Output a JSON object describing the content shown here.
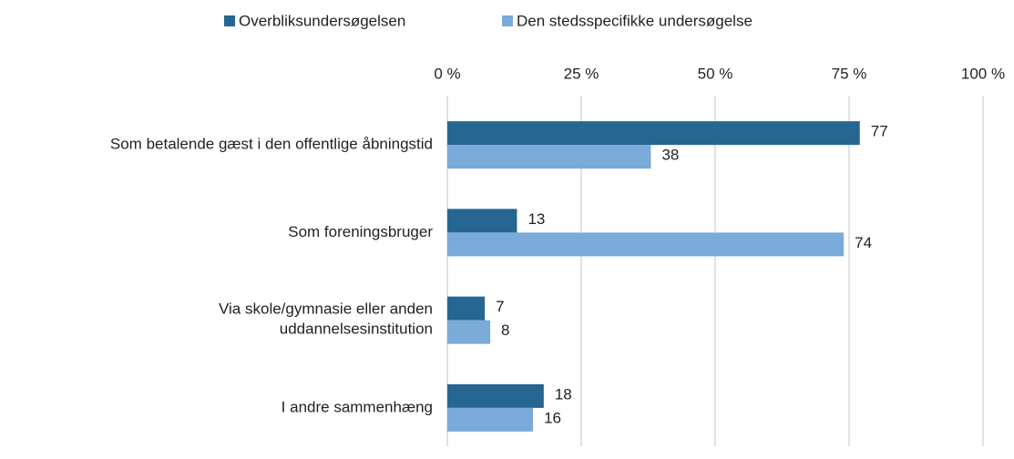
{
  "chart_data": {
    "type": "hbar",
    "categories": [
      "Som betalende gæst i den offentlige åbningstid",
      "Som foreningsbruger",
      "Via skole/gymnasie eller anden\nuddannelsesinstitution",
      "I andre sammenhæng"
    ],
    "series": [
      {
        "name": "Overbliksundersøgelsen",
        "color": "#266690",
        "values": [
          77,
          13,
          7,
          18
        ]
      },
      {
        "name": "Den stedsspecifikke undersøgelse",
        "color": "#7aaad8",
        "values": [
          38,
          74,
          8,
          16
        ]
      }
    ],
    "xlim": [
      0,
      100
    ],
    "xticks": [
      {
        "value": 0,
        "label": "0 %"
      },
      {
        "value": 25,
        "label": "25 %"
      },
      {
        "value": 50,
        "label": "50 %"
      },
      {
        "value": 75,
        "label": "75 %"
      },
      {
        "value": 100,
        "label": "100 %"
      }
    ],
    "grid": true,
    "legend": "top"
  }
}
